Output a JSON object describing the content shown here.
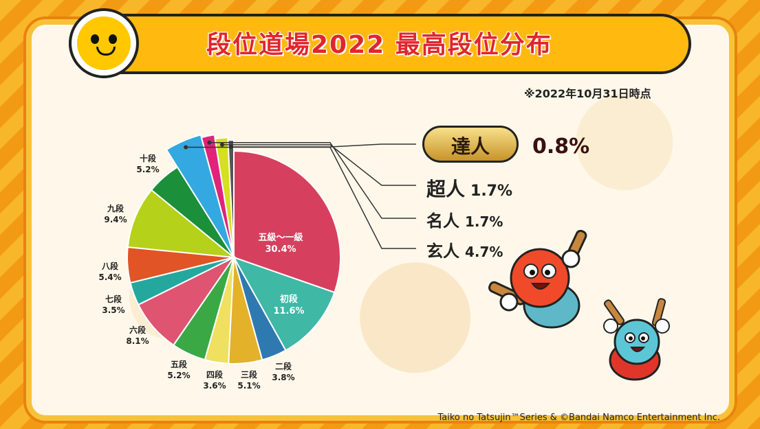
{
  "title": "段位道場2022 最高段位分布",
  "note": "※2022年10月31日時点",
  "copyright": "Taiko no Tatsujin™Series & ©Bandai Namco Entertainment Inc.",
  "colors": {
    "accent": "#e0262d",
    "title_bar": "#ffb90f"
  },
  "ranks": [
    {
      "name": "達人",
      "value": "0.8%"
    },
    {
      "name": "超人",
      "value": "1.7%"
    },
    {
      "name": "名人",
      "value": "1.7%"
    },
    {
      "name": "玄人",
      "value": "4.7%"
    }
  ],
  "chart_data": {
    "type": "pie",
    "title": "段位道場2022 最高段位分布",
    "slices": [
      {
        "label": "五級〜一級",
        "value": 30.4,
        "color": "#d6405e"
      },
      {
        "label": "初段",
        "value": 11.6,
        "color": "#3fb8a6"
      },
      {
        "label": "二段",
        "value": 3.8,
        "color": "#2f79b1"
      },
      {
        "label": "三段",
        "value": 5.1,
        "color": "#e3b12a"
      },
      {
        "label": "四段",
        "value": 3.6,
        "color": "#f0e060"
      },
      {
        "label": "五段",
        "value": 5.2,
        "color": "#3aa845"
      },
      {
        "label": "六段",
        "value": 8.1,
        "color": "#df5470"
      },
      {
        "label": "七段",
        "value": 3.5,
        "color": "#24a89e"
      },
      {
        "label": "八段",
        "value": 5.4,
        "color": "#e05426"
      },
      {
        "label": "九段",
        "value": 9.4,
        "color": "#b5d11a"
      },
      {
        "label": "十段",
        "value": 5.2,
        "color": "#1b8f3a"
      },
      {
        "label": "玄人",
        "value": 4.7,
        "color": "#34a8e0"
      },
      {
        "label": "名人",
        "value": 1.7,
        "color": "#e2237a"
      },
      {
        "label": "超人",
        "value": 1.7,
        "color": "#d4e020"
      },
      {
        "label": "達人",
        "value": 0.8,
        "color": "#555555"
      }
    ]
  }
}
